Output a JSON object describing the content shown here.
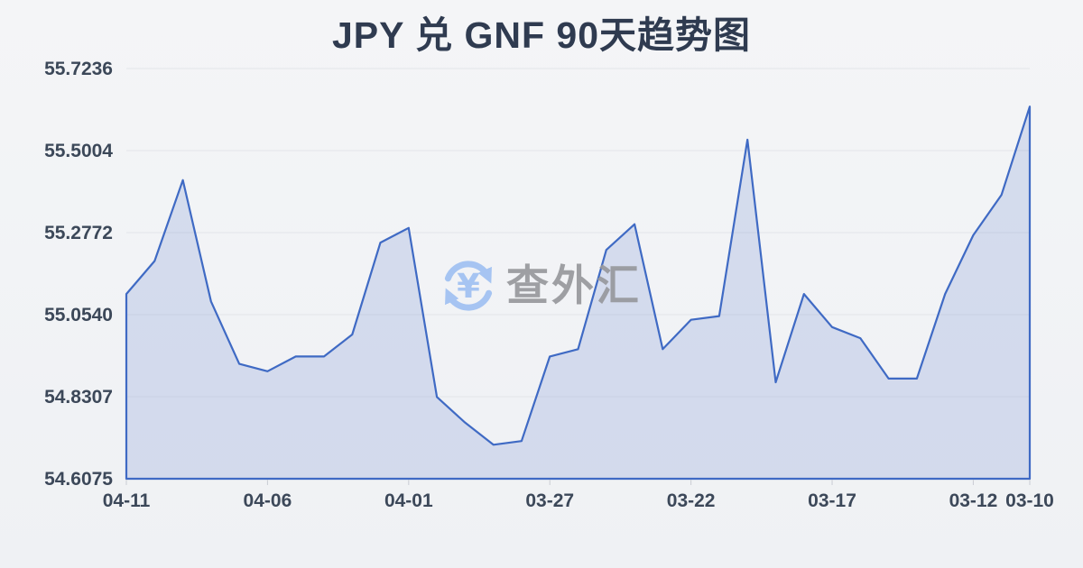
{
  "header": {
    "title": "JPY 兑 GNF 90天趋势图"
  },
  "watermark": {
    "icon": "currency-exchange-icon",
    "symbol": "¥",
    "text": "查外汇",
    "icon_color": "#a6c4f2",
    "text_color": "#97989d"
  },
  "chart_data": {
    "type": "area",
    "title": "JPY 兑 GNF 90天趋势图",
    "xlabel": "",
    "ylabel": "",
    "grid": true,
    "x_axis_note": "dates run right-to-left (newest on left)",
    "x_tick_labels": [
      "04-11",
      "04-06",
      "04-01",
      "03-27",
      "03-22",
      "03-17",
      "03-12",
      "03-10"
    ],
    "x_tick_positions": [
      0,
      5,
      10,
      15,
      20,
      25,
      30,
      32
    ],
    "y_tick_labels": [
      "55.7236",
      "55.5004",
      "55.2772",
      "55.0540",
      "54.8307",
      "54.6075"
    ],
    "ylim": [
      54.6075,
      55.7236
    ],
    "dates": [
      "04-11",
      "04-10",
      "04-09",
      "04-08",
      "04-07",
      "04-06",
      "04-05",
      "04-04",
      "04-03",
      "04-02",
      "04-01",
      "03-31",
      "03-30",
      "03-29",
      "03-28",
      "03-27",
      "03-26",
      "03-25",
      "03-24",
      "03-23",
      "03-22",
      "03-21",
      "03-20",
      "03-19",
      "03-18",
      "03-17",
      "03-16",
      "03-15",
      "03-14",
      "03-13",
      "03-12",
      "03-11",
      "03-10"
    ],
    "values": [
      55.11,
      55.2,
      55.42,
      55.09,
      54.92,
      54.9,
      54.94,
      54.94,
      55.0,
      55.25,
      55.29,
      54.83,
      54.76,
      54.7,
      54.71,
      54.94,
      54.96,
      55.23,
      55.3,
      54.96,
      55.04,
      55.05,
      55.53,
      54.87,
      55.11,
      55.02,
      54.99,
      54.88,
      54.88,
      55.11,
      55.27,
      55.38,
      55.62
    ],
    "line_color": "#3f6ac4",
    "fill_color": "rgba(93,125,205,0.20)",
    "axis_text_color": "#3c4859",
    "gridline_color": "#e3e5e9",
    "legend": "none"
  }
}
